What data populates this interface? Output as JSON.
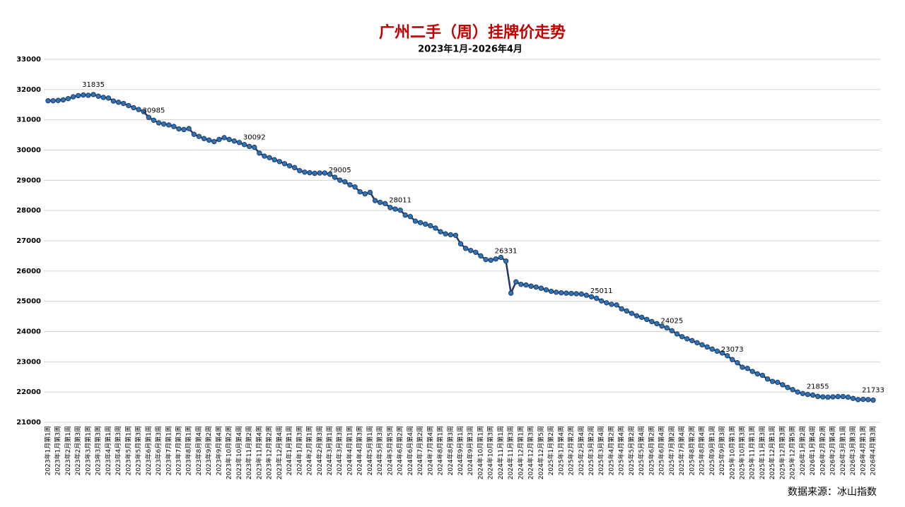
{
  "chart_data": {
    "type": "line",
    "title": "广州二手（周）挂牌价走势",
    "subtitle": "2023年1月-2026年4月",
    "source": "数据来源：冰山指数",
    "color": "#1f3864",
    "marker_color": "#2e75b6",
    "ylim": [
      21000,
      33000
    ],
    "yticks": [
      21000,
      22000,
      23000,
      24000,
      25000,
      26000,
      27000,
      28000,
      29000,
      30000,
      31000,
      32000,
      33000
    ],
    "grid": true,
    "categories": [
      "2023年1月第1周",
      null,
      "2023年1月第3周",
      null,
      "2023年2月第1周",
      null,
      "2023年2月第3周",
      null,
      "2023年3月第1周",
      null,
      "2023年3月第3周",
      null,
      "2023年4月第1周",
      null,
      "2023年4月第3周",
      null,
      "2023年5月第1周",
      null,
      "2023年5月第3周",
      null,
      "2023年6月第1周",
      null,
      "2023年6月第3周",
      null,
      "2023年7月第1周",
      null,
      "2023年7月第3周",
      null,
      "2023年8月第1周",
      null,
      "2023年8月第4周",
      null,
      "2023年9月第2周",
      null,
      "2023年9月第4周",
      null,
      "2023年10月第2周",
      null,
      "2023年10月第4周",
      null,
      "2023年11月第2周",
      null,
      "2023年11月第4周",
      null,
      "2023年12月第2周",
      null,
      "2023年12月第4周",
      null,
      "2024年1月第1周",
      null,
      "2024年1月第3周",
      null,
      "2024年2月第1周",
      null,
      "2024年2月第3周",
      null,
      "2024年3月第1周",
      null,
      "2024年3月第3周",
      null,
      "2024年4月第1周",
      null,
      "2024年4月第3周",
      null,
      "2024年5月第1周",
      null,
      "2024年5月第3周",
      null,
      "2024年5月第5周",
      null,
      "2024年6月第2周",
      null,
      "2024年6月第4周",
      null,
      "2024年7月第2周",
      null,
      "2024年7月第4周",
      null,
      "2024年8月第1周",
      null,
      "2024年8月第3周",
      null,
      "2024年9月第1周",
      null,
      "2024年9月第3周",
      null,
      "2024年10月第1周",
      null,
      "2024年10月第3周",
      null,
      "2024年11月第1周",
      null,
      "2024年11月第3周",
      null,
      "2024年12月第1周",
      null,
      "2024年12月第3周",
      null,
      "2024年12月第5周",
      null,
      "2025年1月第2周",
      null,
      "2025年1月第4周",
      null,
      "2025年2月第2周",
      null,
      "2025年2月第4周",
      null,
      "2025年3月第2周",
      null,
      "2025年3月第4周",
      null,
      "2025年4月第2周",
      null,
      "2025年4月第4周",
      null,
      "2025年5月第2周",
      null,
      "2025年5月第4周",
      null,
      "2025年6月第2周",
      null,
      "2025年6月第4周",
      null,
      "2025年7月第2周",
      null,
      "2025年7月第4周",
      null,
      "2025年8月第2周",
      null,
      "2025年8月第4周",
      null,
      "2025年9月第1周",
      null,
      "2025年9月第3周",
      null,
      "2025年10月第1周",
      null,
      "2025年10月第3周",
      null,
      "2025年11月第1周",
      null,
      "2025年11月第3周",
      null,
      "2025年12月第1周",
      null,
      "2025年12月第3周",
      null,
      "2025年12月第5周",
      null,
      "2026年1月第2周",
      null,
      "2026年1月第4周",
      null,
      "2026年2月第2周",
      null,
      "2026年2月第4周",
      null,
      "2026年3月第1周",
      null,
      "2026年3月第3周",
      null,
      "2026年4月第1周",
      null,
      "2026年4月第3周"
    ],
    "values": [
      31630,
      31630,
      31640,
      31660,
      31700,
      31760,
      31800,
      31820,
      31810,
      31835,
      31780,
      31740,
      31720,
      31620,
      31580,
      31540,
      31470,
      31400,
      31340,
      31270,
      31080,
      30985,
      30900,
      30860,
      30830,
      30780,
      30700,
      30680,
      30710,
      30520,
      30450,
      30380,
      30330,
      30280,
      30350,
      30410,
      30350,
      30300,
      30250,
      30180,
      30120,
      30092,
      29900,
      29800,
      29750,
      29680,
      29620,
      29550,
      29480,
      29420,
      29320,
      29270,
      29250,
      29230,
      29240,
      29240,
      29200,
      29100,
      29005,
      28950,
      28850,
      28780,
      28620,
      28550,
      28600,
      28330,
      28270,
      28230,
      28100,
      28050,
      28011,
      27850,
      27800,
      27650,
      27600,
      27550,
      27500,
      27420,
      27300,
      27230,
      27200,
      27180,
      26900,
      26750,
      26680,
      26620,
      26500,
      26380,
      26360,
      26400,
      26450,
      26331,
      25270,
      25640,
      25560,
      25540,
      25500,
      25470,
      25430,
      25380,
      25330,
      25300,
      25280,
      25270,
      25260,
      25250,
      25240,
      25200,
      25150,
      25100,
      25011,
      24950,
      24900,
      24880,
      24750,
      24680,
      24600,
      24520,
      24470,
      24400,
      24330,
      24260,
      24180,
      24120,
      24025,
      23920,
      23830,
      23760,
      23700,
      23630,
      23560,
      23490,
      23420,
      23350,
      23290,
      23200,
      23073,
      22970,
      22820,
      22780,
      22680,
      22600,
      22550,
      22430,
      22350,
      22320,
      22240,
      22150,
      22080,
      22000,
      21950,
      21920,
      21900,
      21855,
      21840,
      21830,
      21840,
      21850,
      21850,
      21830,
      21790,
      21750,
      21760,
      21750,
      21733
    ],
    "value_labels": [
      null,
      null,
      null,
      null,
      null,
      null,
      null,
      null,
      null,
      31835,
      null,
      null,
      null,
      null,
      null,
      null,
      null,
      null,
      null,
      null,
      null,
      30985,
      null,
      null,
      null,
      null,
      null,
      null,
      null,
      null,
      null,
      null,
      null,
      null,
      null,
      null,
      null,
      null,
      null,
      null,
      null,
      30092,
      null,
      null,
      null,
      null,
      null,
      null,
      null,
      null,
      null,
      null,
      null,
      null,
      null,
      null,
      null,
      null,
      29005,
      null,
      null,
      null,
      null,
      null,
      null,
      null,
      null,
      null,
      null,
      null,
      28011,
      null,
      null,
      null,
      null,
      null,
      null,
      null,
      null,
      null,
      null,
      null,
      null,
      null,
      null,
      null,
      null,
      null,
      null,
      null,
      null,
      26331,
      null,
      null,
      null,
      null,
      null,
      null,
      null,
      null,
      null,
      null,
      null,
      null,
      null,
      null,
      null,
      null,
      null,
      null,
      25011,
      null,
      null,
      null,
      null,
      null,
      null,
      null,
      null,
      null,
      null,
      null,
      null,
      null,
      24025,
      null,
      null,
      null,
      null,
      null,
      null,
      null,
      null,
      null,
      null,
      null,
      23073,
      null,
      null,
      null,
      null,
      null,
      null,
      null,
      null,
      null,
      null,
      null,
      null,
      null,
      null,
      null,
      null,
      21855,
      null,
      null,
      null,
      null,
      null,
      null,
      null,
      null,
      null,
      null,
      21733
    ]
  }
}
